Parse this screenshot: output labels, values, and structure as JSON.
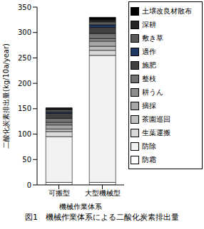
{
  "chart_data": {
    "type": "bar",
    "title": "図1　機械作業体系による二酸化炭素排出量",
    "x_label": "機械作業体系",
    "y_label": "二酸化炭素排出量(kg/10a/year)",
    "categories": [
      "可搬型",
      "大型機械型"
    ],
    "stacked": true,
    "legend": "right",
    "grid": false,
    "ylim": [
      0,
      350
    ],
    "yticks": [
      0,
      50,
      100,
      150,
      200,
      250,
      300,
      350
    ],
    "series": [
      {
        "name": "防霜",
        "color": "#ffffff",
        "values": [
          5,
          5
        ]
      },
      {
        "name": "防除",
        "color": "#f2f2f2",
        "values": [
          90,
          250
        ]
      },
      {
        "name": "生葉運搬",
        "color": "#d9d9d9",
        "values": [
          10,
          10
        ]
      },
      {
        "name": "茶園巡回",
        "color": "#bfbfbf",
        "values": [
          5,
          8
        ]
      },
      {
        "name": "摘採",
        "color": "#a6a6a6",
        "values": [
          8,
          10
        ]
      },
      {
        "name": "耕うん",
        "color": "#8c8c8c",
        "values": [
          5,
          5
        ]
      },
      {
        "name": "整枝",
        "color": "#737373",
        "values": [
          8,
          10
        ]
      },
      {
        "name": "施肥",
        "color": "#404040",
        "values": [
          10,
          12
        ]
      },
      {
        "name": "適作",
        "color": "#1f3864",
        "values": [
          3,
          5
        ]
      },
      {
        "name": "敷き草",
        "color": "#595959",
        "values": [
          4,
          6
        ]
      },
      {
        "name": "深耕",
        "color": "#262626",
        "values": [
          2,
          4
        ]
      },
      {
        "name": "土壌改良材散布",
        "color": "#000000",
        "values": [
          2,
          5
        ]
      }
    ]
  }
}
